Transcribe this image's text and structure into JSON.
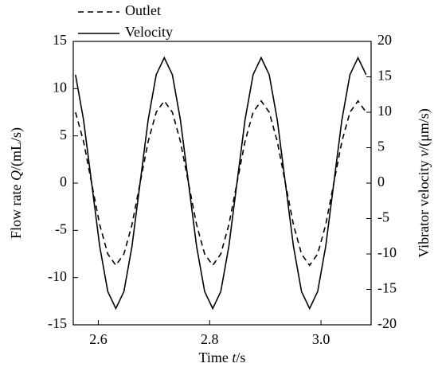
{
  "chart_data": {
    "type": "line",
    "x_label": [
      "Time ",
      "t",
      "/s"
    ],
    "y_label": [
      "Flow rate ",
      "Q",
      "/(mL/s)"
    ],
    "y2_label": [
      "Vibrator velocity ",
      "v",
      "/(μm/s)"
    ],
    "x": [
      2.559,
      2.5735,
      2.588,
      2.6025,
      2.617,
      2.6315,
      2.646,
      2.6605,
      2.675,
      2.6895,
      2.704,
      2.7185,
      2.733,
      2.7475,
      2.762,
      2.7765,
      2.791,
      2.8055,
      2.82,
      2.8345,
      2.849,
      2.8635,
      2.878,
      2.8925,
      2.907,
      2.9215,
      2.936,
      2.9505,
      2.965,
      2.9795,
      2.994,
      3.0085,
      3.023,
      3.0375,
      3.052,
      3.0665,
      3.081
    ],
    "series": [
      {
        "name": "Outlet",
        "color": "#000000",
        "style": "dashed",
        "axis": "y",
        "values": [
          7.5,
          4.4,
          0,
          -4.4,
          -7.5,
          -8.7,
          -7.5,
          -4.4,
          0,
          4.4,
          7.5,
          8.7,
          7.5,
          4.4,
          0,
          -4.4,
          -7.5,
          -8.7,
          -7.5,
          -4.4,
          0,
          4.4,
          7.5,
          8.7,
          7.5,
          4.4,
          0,
          -4.4,
          -7.5,
          -8.7,
          -7.5,
          -4.4,
          0,
          4.4,
          7.5,
          8.7,
          7.5
        ]
      },
      {
        "name": "Velocity",
        "color": "#000000",
        "style": "solid",
        "axis": "y2",
        "values": [
          15.3,
          8.9,
          0,
          -8.9,
          -15.3,
          -17.7,
          -15.3,
          -8.9,
          0,
          8.9,
          15.3,
          17.7,
          15.3,
          8.9,
          0,
          -8.9,
          -15.3,
          -17.7,
          -15.3,
          -8.9,
          0,
          8.9,
          15.3,
          17.7,
          15.3,
          8.9,
          0,
          -8.9,
          -15.3,
          -17.7,
          -15.3,
          -8.9,
          0,
          8.9,
          15.3,
          17.7,
          15.3
        ]
      }
    ],
    "xlim": [
      2.555,
      3.09
    ],
    "xticks": [
      2.6,
      2.8,
      {
        "value": 3,
        "label": "3.0"
      }
    ],
    "ylim": [
      -15,
      15
    ],
    "yticks": [
      -15,
      -10,
      -5,
      0,
      5,
      10,
      15
    ],
    "y2lim": [
      -20,
      20
    ],
    "y2ticks": [
      -20,
      -15,
      -10,
      -5,
      0,
      5,
      10,
      15,
      20
    ],
    "grid": false,
    "legend": "top-left"
  }
}
